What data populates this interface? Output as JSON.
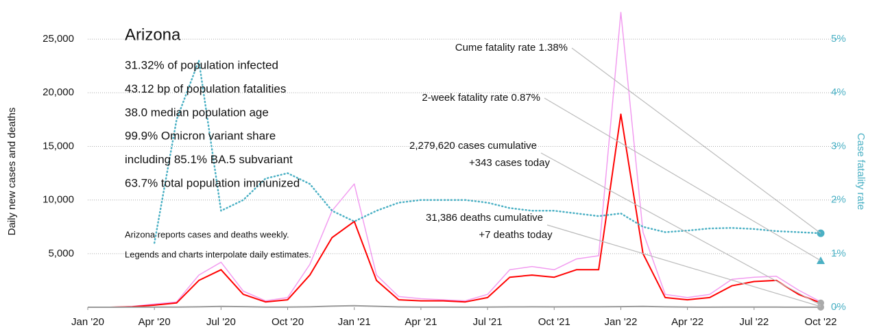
{
  "chart_data": {
    "type": "line",
    "title": "Arizona",
    "stats": [
      "31.32% of population infected",
      "43.12 bp of population fatalities",
      "38.0 median population age",
      "99.9% Omicron variant share",
      "including 85.1% BA.5 subvariant",
      "63.7% total population immunized"
    ],
    "notes": [
      "Arizona reports cases and deaths weekly.",
      "Legends and charts interpolate daily estimates."
    ],
    "callouts": [
      [
        "Cume fatality rate 1.38%"
      ],
      [
        "2-week fatality rate 0.87%"
      ],
      [
        "2,279,620 cases cumulative",
        "+343 cases today"
      ],
      [
        "31,386 deaths cumulative",
        "+7 deaths today"
      ]
    ],
    "y_label": "Daily new cases and deaths",
    "y2_label": "Case fatality rate",
    "x": [
      "2020-01",
      "2020-02",
      "2020-03",
      "2020-04",
      "2020-05",
      "2020-06",
      "2020-07",
      "2020-08",
      "2020-09",
      "2020-10",
      "2020-11",
      "2020-12",
      "2021-01",
      "2021-02",
      "2021-03",
      "2021-04",
      "2021-05",
      "2021-06",
      "2021-07",
      "2021-08",
      "2021-09",
      "2021-10",
      "2021-11",
      "2021-12",
      "2022-01",
      "2022-02",
      "2022-03",
      "2022-04",
      "2022-05",
      "2022-06",
      "2022-07",
      "2022-08",
      "2022-09",
      "2022-10"
    ],
    "xlim": [
      "2020-01",
      "2022-10"
    ],
    "xticks": [
      {
        "value": "2020-01",
        "label": "Jan '20"
      },
      {
        "value": "2020-04",
        "label": "Apr '20"
      },
      {
        "value": "2020-07",
        "label": "Jul '20"
      },
      {
        "value": "2020-10",
        "label": "Oct '20"
      },
      {
        "value": "2021-01",
        "label": "Jan '21"
      },
      {
        "value": "2021-04",
        "label": "Apr '21"
      },
      {
        "value": "2021-07",
        "label": "Jul '21"
      },
      {
        "value": "2021-10",
        "label": "Oct '21"
      },
      {
        "value": "2022-01",
        "label": "Jan '22"
      },
      {
        "value": "2022-04",
        "label": "Apr '22"
      },
      {
        "value": "2022-07",
        "label": "Jul '22"
      },
      {
        "value": "2022-10",
        "label": "Oct '22"
      }
    ],
    "ylim": [
      0,
      27500
    ],
    "yticks": [
      {
        "value": 5000,
        "label": "5,000"
      },
      {
        "value": 10000,
        "label": "10,000"
      },
      {
        "value": 15000,
        "label": "15,000"
      },
      {
        "value": 20000,
        "label": "20,000"
      },
      {
        "value": 25000,
        "label": "25,000"
      }
    ],
    "y2lim": [
      0,
      5.5
    ],
    "y2ticks": [
      {
        "value": 0,
        "label": "0%"
      },
      {
        "value": 1,
        "label": "1%"
      },
      {
        "value": 2,
        "label": "2%"
      },
      {
        "value": 3,
        "label": "3%"
      },
      {
        "value": 4,
        "label": "4%"
      },
      {
        "value": 5,
        "label": "5%"
      }
    ],
    "grid": true,
    "series": [
      {
        "color": "#f29cf0",
        "width": 1.5,
        "values": [
          0,
          0,
          80,
          300,
          500,
          3000,
          4200,
          1500,
          600,
          900,
          4000,
          9000,
          11500,
          3000,
          1000,
          800,
          700,
          600,
          1200,
          3500,
          3800,
          3500,
          4500,
          4800,
          27500,
          7000,
          1200,
          900,
          1200,
          2600,
          2800,
          2900,
          1600,
          500
        ]
      },
      {
        "color": "#ff0000",
        "width": 2,
        "values": [
          0,
          0,
          50,
          200,
          400,
          2500,
          3500,
          1200,
          500,
          700,
          3000,
          6500,
          8000,
          2500,
          700,
          600,
          600,
          500,
          900,
          2800,
          3000,
          2800,
          3500,
          3500,
          18000,
          5000,
          900,
          700,
          900,
          2000,
          2400,
          2500,
          1200,
          400
        ]
      },
      {
        "color": "#999999",
        "width": 2,
        "values": [
          0,
          0,
          5,
          20,
          20,
          40,
          80,
          60,
          20,
          15,
          40,
          100,
          150,
          90,
          30,
          15,
          10,
          8,
          10,
          30,
          40,
          35,
          40,
          40,
          60,
          80,
          40,
          15,
          8,
          10,
          12,
          10,
          8,
          7
        ]
      },
      {
        "color": "#4ab0c4",
        "width": 2.5,
        "dash": "1 4",
        "axis": "y2",
        "values": [
          null,
          null,
          null,
          1.2,
          3.5,
          4.6,
          1.8,
          2.0,
          2.4,
          2.5,
          2.3,
          1.8,
          1.6,
          1.8,
          1.95,
          2.0,
          2.0,
          2.0,
          1.95,
          1.85,
          1.8,
          1.8,
          1.75,
          1.7,
          1.75,
          1.5,
          1.4,
          1.43,
          1.47,
          1.48,
          1.46,
          1.42,
          1.4,
          1.38
        ]
      }
    ],
    "end_markers": [
      {
        "value": 1.38,
        "shape": "circle",
        "axis": "y2",
        "color": "#4ab0c4"
      },
      {
        "value": 0.87,
        "shape": "triangle",
        "axis": "y2",
        "color": "#4ab0c4"
      }
    ]
  }
}
